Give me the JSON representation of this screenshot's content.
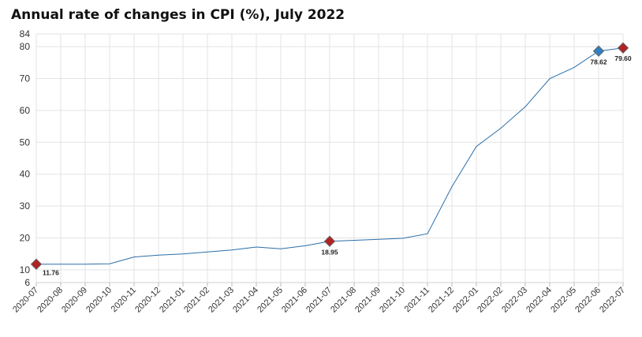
{
  "colors": {
    "line": "#2b6ea8",
    "highlight_marker": "#b22222",
    "latest_marker": "#2f7fc1",
    "grid": "#e3e3e3"
  },
  "chart_data": {
    "type": "line",
    "title": "Annual rate of changes in CPI (%), July 2022",
    "xlabel": "",
    "ylabel": "",
    "ylim": [
      6,
      84
    ],
    "yticks": [
      6,
      10,
      20,
      30,
      40,
      50,
      60,
      70,
      80,
      84
    ],
    "grid": true,
    "categories": [
      "2020-07",
      "2020-08",
      "2020-09",
      "2020-10",
      "2020-11",
      "2020-12",
      "2021-01",
      "2021-02",
      "2021-03",
      "2021-04",
      "2021-05",
      "2021-06",
      "2021-07",
      "2021-08",
      "2021-09",
      "2021-10",
      "2021-11",
      "2021-12",
      "2022-01",
      "2022-02",
      "2022-03",
      "2022-04",
      "2022-05",
      "2022-06",
      "2022-07"
    ],
    "series": [
      {
        "values": [
          11.76,
          11.77,
          11.75,
          11.89,
          14.03,
          14.6,
          14.97,
          15.61,
          16.19,
          17.14,
          16.59,
          17.53,
          18.95,
          19.25,
          19.58,
          19.89,
          21.31,
          36.08,
          48.69,
          54.44,
          61.14,
          69.97,
          73.5,
          78.62,
          79.6
        ]
      }
    ],
    "data_labels": [
      {
        "index": 0,
        "text": "11.76",
        "marker": "highlight"
      },
      {
        "index": 12,
        "text": "18.95",
        "marker": "highlight"
      },
      {
        "index": 23,
        "text": "78.62",
        "marker": "latest"
      },
      {
        "index": 24,
        "text": "79.60",
        "marker": "highlight"
      }
    ]
  }
}
